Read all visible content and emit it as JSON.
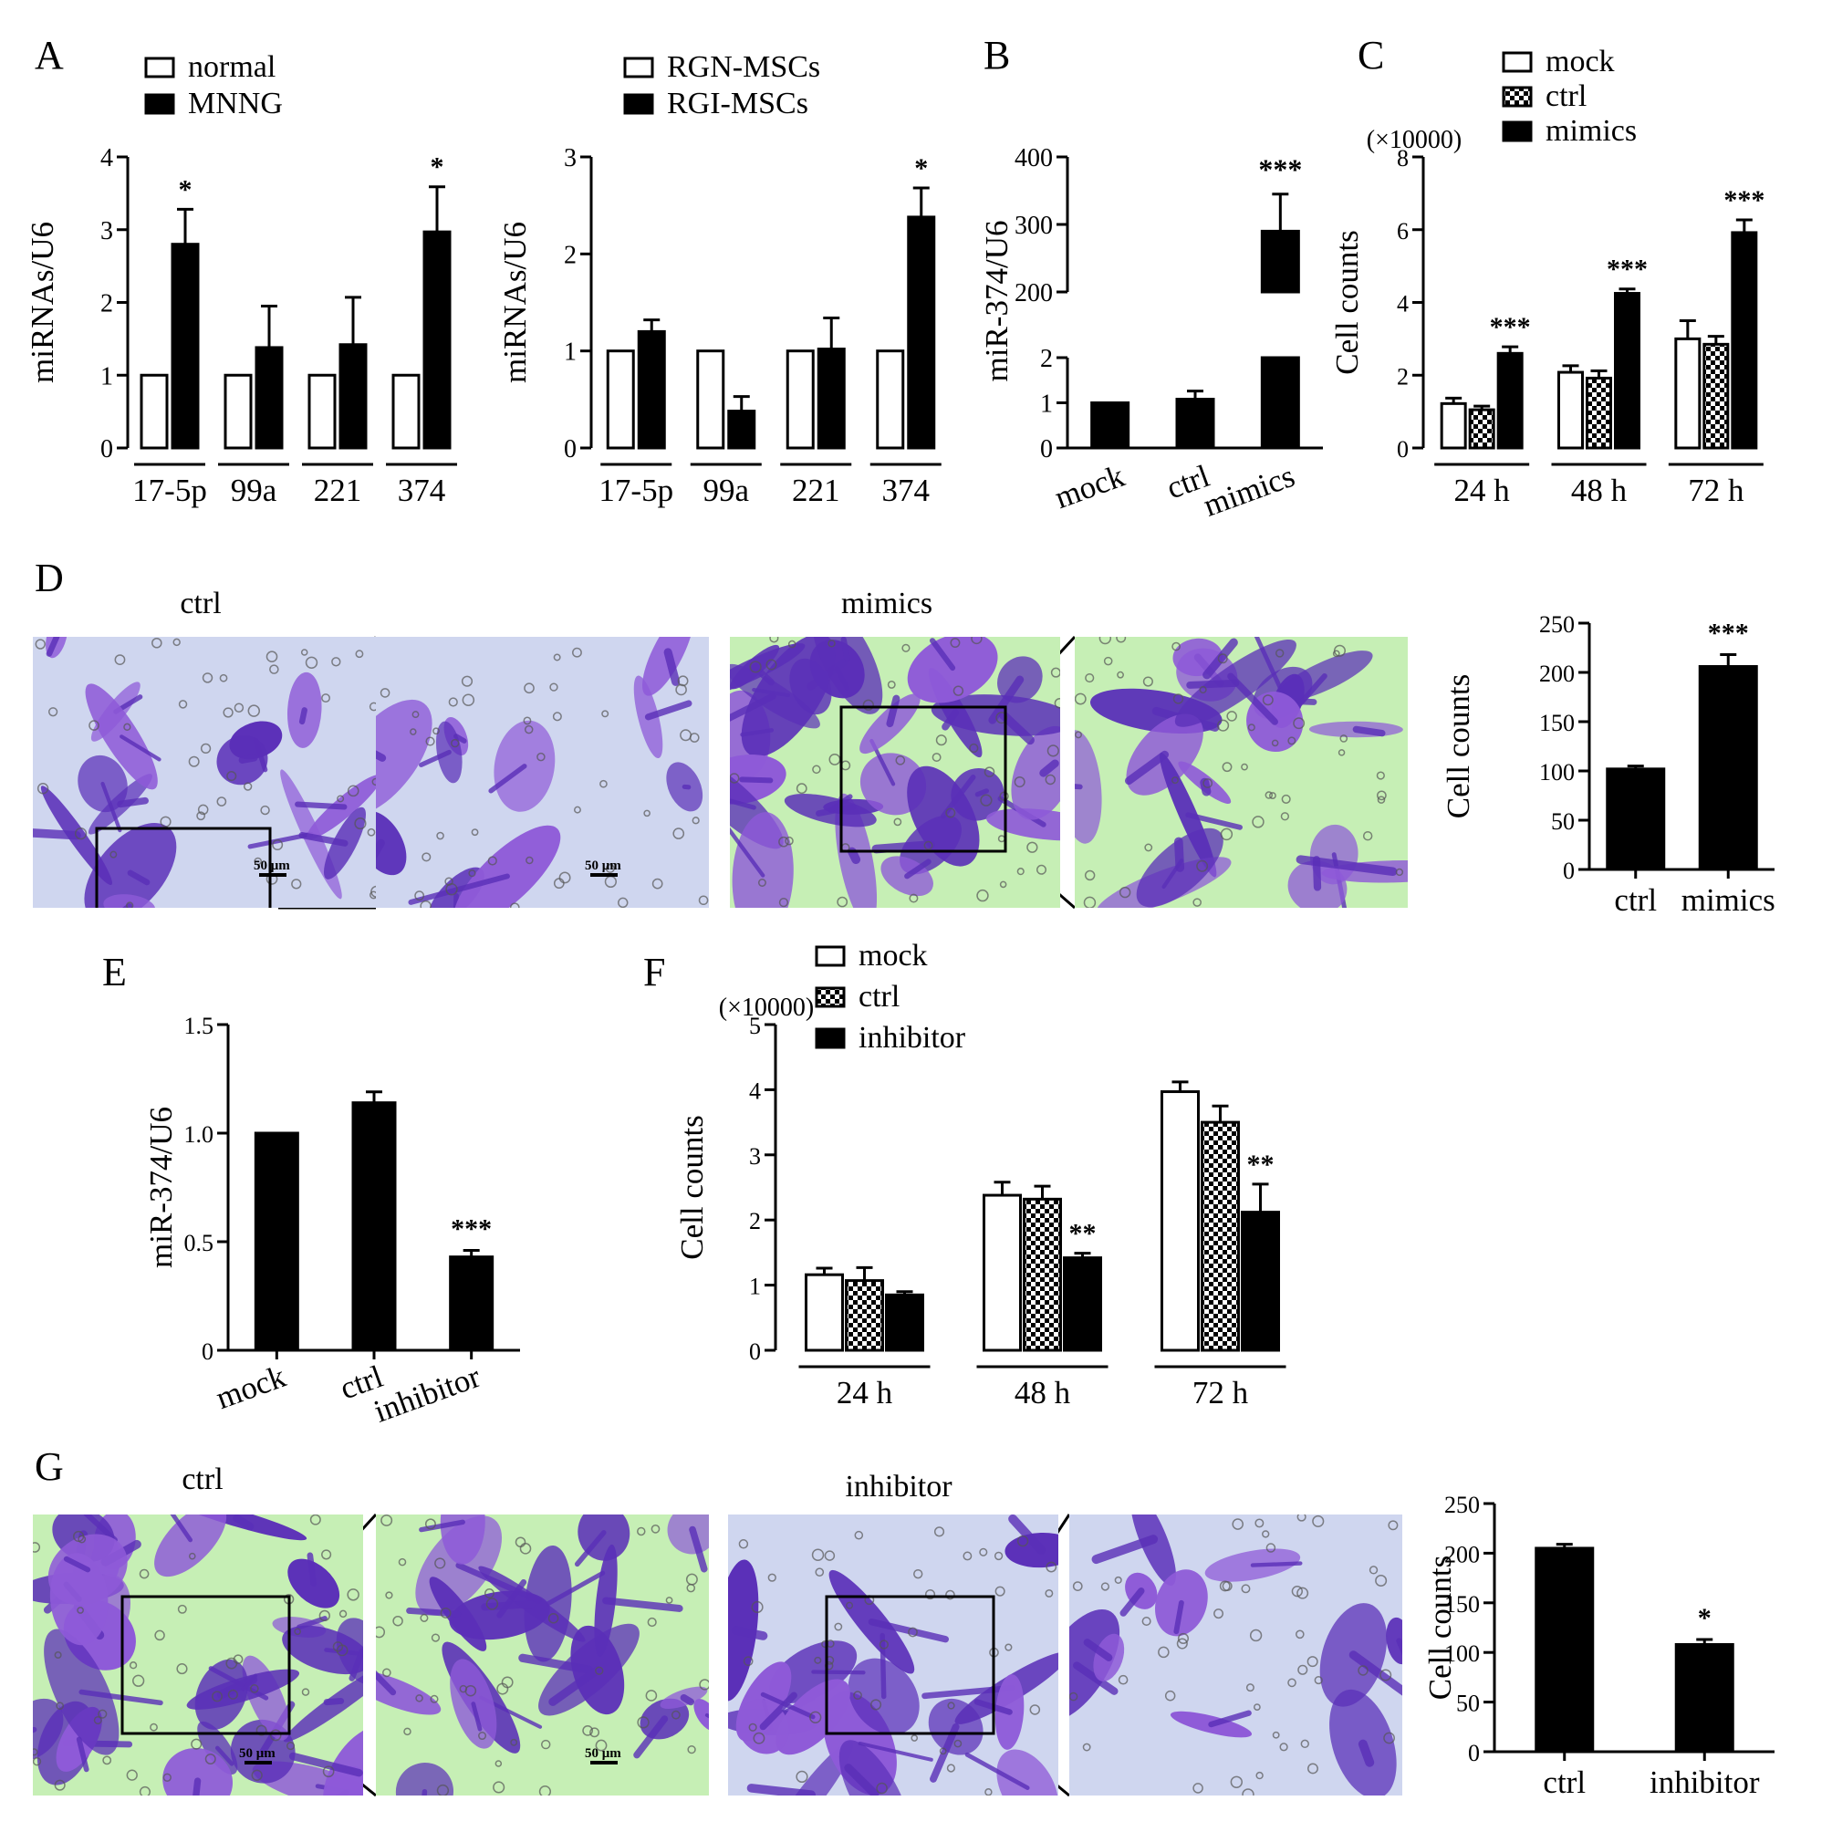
{
  "panel_letters": {
    "A": "A",
    "B": "B",
    "C": "C",
    "D": "D",
    "E": "E",
    "F": "F",
    "G": "G"
  },
  "images": {
    "D": {
      "left_label": "ctrl",
      "right_label": "mimics",
      "scale_bar": "50 μm"
    },
    "G": {
      "left_label": "ctrl",
      "right_label": "inhibitor",
      "scale_bar": "50 μm"
    }
  },
  "colors": {
    "stain_dark": "#5a2fb8",
    "stain_mid": "#8e5ad8",
    "background_green": "#c6efb5",
    "background_blue": "#cfd6ef"
  },
  "chart_data": [
    {
      "id": "A1",
      "type": "bar",
      "ylabel": "miRNAs/U6",
      "ylim": [
        0,
        4
      ],
      "yticks": [
        0,
        1,
        2,
        3,
        4
      ],
      "categories": [
        "17-5p",
        "99a",
        "221",
        "374"
      ],
      "legend": [
        "normal",
        "MNNG"
      ],
      "series": [
        {
          "name": "normal",
          "style": "open",
          "values": [
            1,
            1,
            1,
            1
          ],
          "errors": [
            0,
            0,
            0,
            0
          ]
        },
        {
          "name": "MNNG",
          "style": "filled",
          "values": [
            2.8,
            1.38,
            1.42,
            2.97
          ],
          "errors": [
            0.48,
            0.57,
            0.65,
            0.62
          ]
        }
      ],
      "annotations": [
        {
          "category": "17-5p",
          "series": "MNNG",
          "text": "*"
        },
        {
          "category": "374",
          "series": "MNNG",
          "text": "*"
        }
      ]
    },
    {
      "id": "A2",
      "type": "bar",
      "ylabel": "miRNAs/U6",
      "ylim": [
        0,
        3
      ],
      "yticks": [
        0,
        1,
        2,
        3
      ],
      "categories": [
        "17-5p",
        "99a",
        "221",
        "374"
      ],
      "legend": [
        "RGN-MSCs",
        "RGI-MSCs"
      ],
      "series": [
        {
          "name": "RGN-MSCs",
          "style": "open",
          "values": [
            1,
            1,
            1,
            1
          ],
          "errors": [
            0,
            0,
            0,
            0
          ]
        },
        {
          "name": "RGI-MSCs",
          "style": "filled",
          "values": [
            1.2,
            0.38,
            1.02,
            2.38
          ],
          "errors": [
            0.12,
            0.15,
            0.32,
            0.3
          ]
        }
      ],
      "annotations": [
        {
          "category": "374",
          "series": "RGI-MSCs",
          "text": "*"
        }
      ]
    },
    {
      "id": "B",
      "type": "bar",
      "ylabel": "miR-374/U6",
      "broken_axis": true,
      "lower_range": [
        0,
        2
      ],
      "upper_range": [
        200,
        400
      ],
      "lower_ticks": [
        0,
        1,
        2
      ],
      "upper_ticks": [
        200,
        300,
        400
      ],
      "categories": [
        "mock",
        "ctrl",
        "mimics"
      ],
      "values": [
        1,
        1.08,
        290
      ],
      "errors": [
        0,
        0.18,
        55
      ],
      "annotations": [
        {
          "category": "mimics",
          "text": "***"
        }
      ]
    },
    {
      "id": "C",
      "type": "bar",
      "ylabel": "Cell counts",
      "unit": "(×10000)",
      "ylim": [
        0,
        8
      ],
      "yticks": [
        0,
        2,
        4,
        6,
        8
      ],
      "categories": [
        "24 h",
        "48 h",
        "72 h"
      ],
      "legend": [
        "mock",
        "ctrl",
        "mimics"
      ],
      "series": [
        {
          "name": "mock",
          "style": "open",
          "values": [
            1.22,
            2.08,
            3.0
          ],
          "errors": [
            0.15,
            0.18,
            0.5
          ]
        },
        {
          "name": "ctrl",
          "style": "checker",
          "values": [
            1.05,
            1.92,
            2.85
          ],
          "errors": [
            0.1,
            0.2,
            0.22
          ]
        },
        {
          "name": "mimics",
          "style": "filled",
          "values": [
            2.6,
            4.25,
            5.92
          ],
          "errors": [
            0.18,
            0.12,
            0.35
          ]
        }
      ],
      "annotations": [
        {
          "category": "24 h",
          "series": "mimics",
          "text": "***"
        },
        {
          "category": "48 h",
          "series": "mimics",
          "text": "***"
        },
        {
          "category": "72 h",
          "series": "mimics",
          "text": "***"
        }
      ]
    },
    {
      "id": "D",
      "type": "bar",
      "ylabel": "Cell counts",
      "ylim": [
        0,
        250
      ],
      "yticks": [
        0,
        50,
        100,
        150,
        200,
        250
      ],
      "categories": [
        "ctrl",
        "mimics"
      ],
      "values": [
        102,
        206
      ],
      "errors": [
        3,
        12
      ],
      "annotations": [
        {
          "category": "mimics",
          "text": "***"
        }
      ]
    },
    {
      "id": "E",
      "type": "bar",
      "ylabel": "miR-374/U6",
      "ylim": [
        0,
        1.5
      ],
      "yticks": [
        0,
        0.5,
        1.0,
        1.5
      ],
      "ytick_labels": [
        "0",
        "0.5",
        "1.0",
        "1.5"
      ],
      "categories": [
        "mock",
        "ctrl",
        "inhibitor"
      ],
      "values": [
        1.0,
        1.14,
        0.43
      ],
      "errors": [
        0,
        0.05,
        0.03
      ],
      "annotations": [
        {
          "category": "inhibitor",
          "text": "***"
        }
      ]
    },
    {
      "id": "F",
      "type": "bar",
      "ylabel": "Cell counts",
      "unit": "(×10000)",
      "ylim": [
        0,
        5
      ],
      "yticks": [
        0,
        1,
        2,
        3,
        4,
        5
      ],
      "categories": [
        "24 h",
        "48 h",
        "72 h"
      ],
      "legend": [
        "mock",
        "ctrl",
        "inhibitor"
      ],
      "series": [
        {
          "name": "mock",
          "style": "open",
          "values": [
            1.16,
            2.38,
            3.97
          ],
          "errors": [
            0.1,
            0.2,
            0.15
          ]
        },
        {
          "name": "ctrl",
          "style": "checker",
          "values": [
            1.07,
            2.32,
            3.5
          ],
          "errors": [
            0.2,
            0.2,
            0.25
          ]
        },
        {
          "name": "inhibitor",
          "style": "filled",
          "values": [
            0.85,
            1.42,
            2.12
          ],
          "errors": [
            0.05,
            0.07,
            0.43
          ]
        }
      ],
      "annotations": [
        {
          "category": "48 h",
          "series": "inhibitor",
          "text": "**"
        },
        {
          "category": "72 h",
          "series": "inhibitor",
          "text": "**"
        }
      ]
    },
    {
      "id": "G",
      "type": "bar",
      "ylabel": "Cell counts",
      "ylim": [
        0,
        250
      ],
      "yticks": [
        0,
        50,
        100,
        150,
        200,
        250
      ],
      "categories": [
        "ctrl",
        "inhibitor"
      ],
      "values": [
        205,
        108
      ],
      "errors": [
        4,
        5
      ],
      "annotations": [
        {
          "category": "inhibitor",
          "text": "*"
        }
      ]
    }
  ]
}
